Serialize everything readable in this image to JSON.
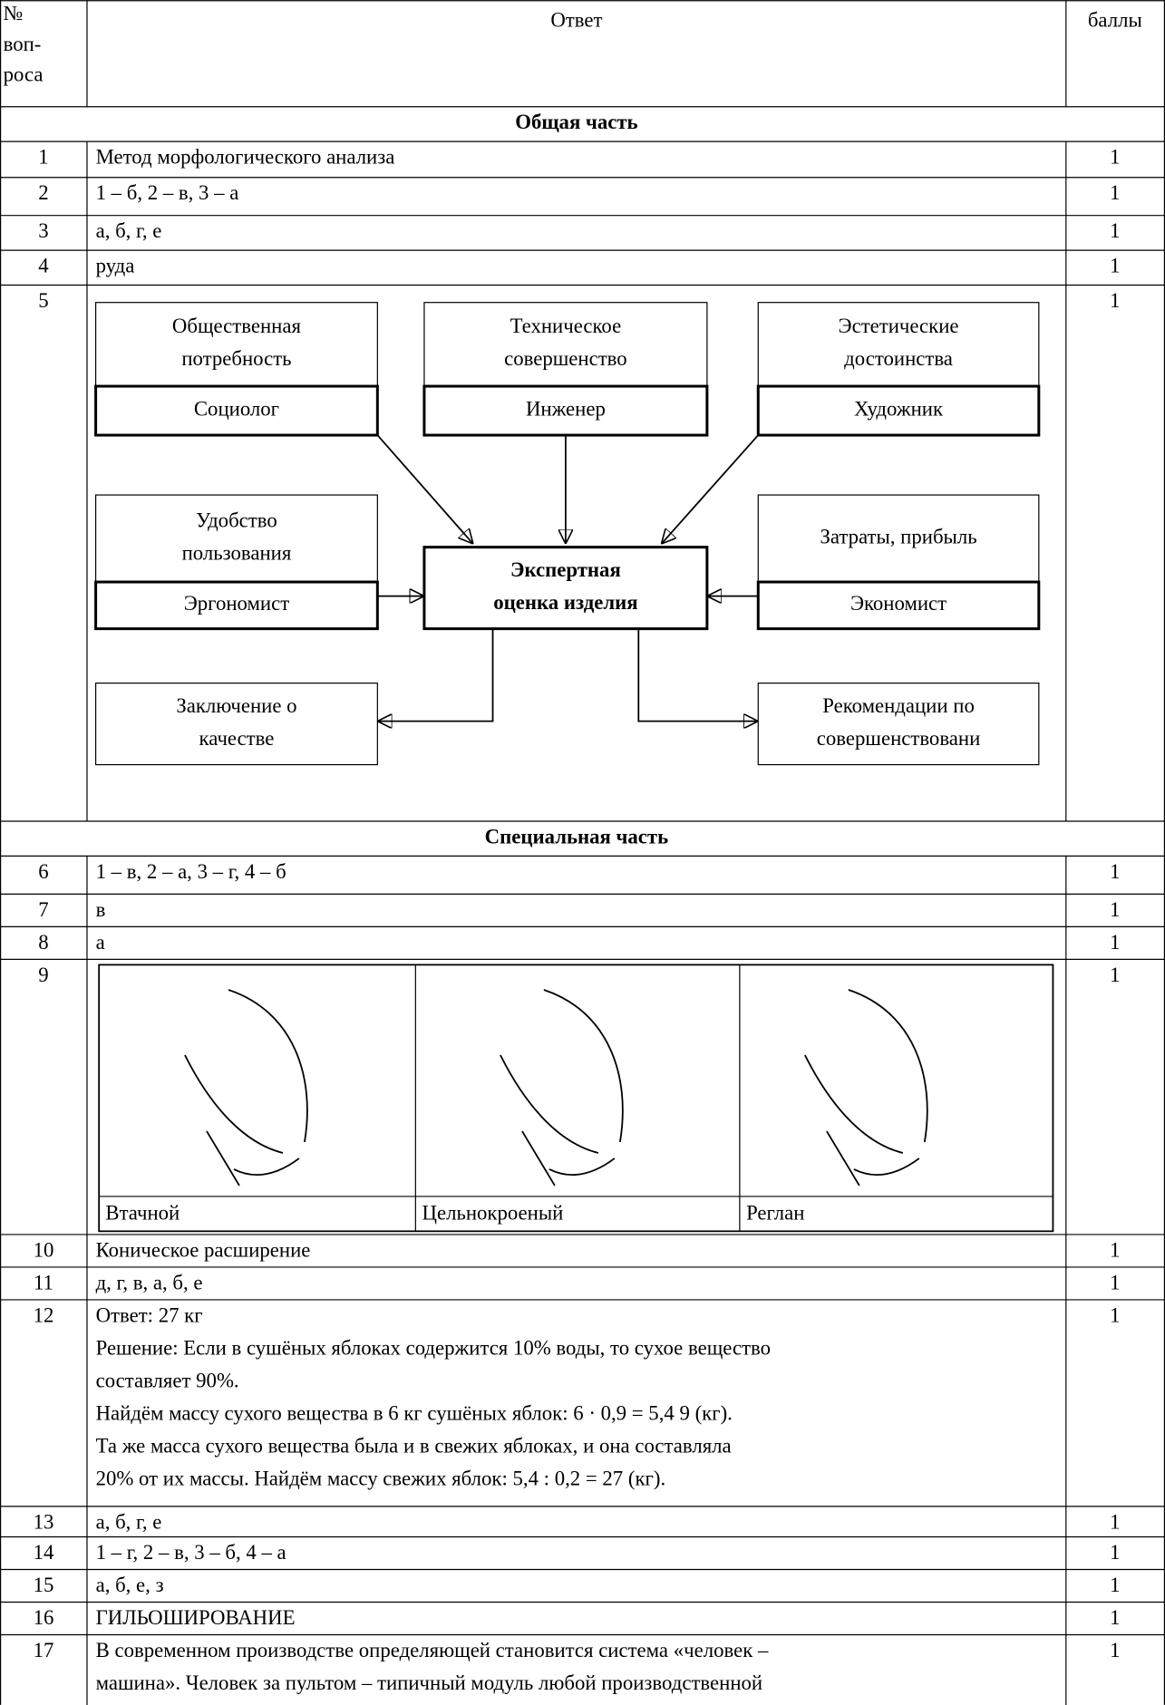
{
  "table": {
    "header": {
      "number": [
        "№",
        "воп-",
        "роса"
      ],
      "answer": "Ответ",
      "points": "баллы"
    },
    "sections": [
      {
        "title": "Общая часть",
        "rows": [
          {
            "number": 1,
            "answer": "Метод морфологического анализа",
            "points": 1
          },
          {
            "number": 2,
            "answer": "1 – б, 2 – в, 3 – а",
            "points": 1
          },
          {
            "number": 3,
            "answer": "а, б, г, е",
            "points": 1
          },
          {
            "number": 4,
            "answer": "руда",
            "points": 1
          },
          {
            "number": 5,
            "points": 1,
            "diagram": {
              "nodes": [
                {
                  "top": [
                    "Общественная",
                    "потребность"
                  ],
                  "bottom": "Социолог"
                },
                {
                  "top": [
                    "Техническое",
                    "совершенство"
                  ],
                  "bottom": "Инженер"
                },
                {
                  "top": [
                    "Эстетические",
                    "достоинства"
                  ],
                  "bottom": "Художник"
                },
                {
                  "top": [
                    "Удобство",
                    "пользования"
                  ],
                  "bottom": "Эргономист"
                },
                {
                  "top": [
                    "Экспертная",
                    "оценка изделия"
                  ]
                },
                {
                  "top": [
                    "Затраты, прибыль"
                  ],
                  "bottom": "Экономист"
                },
                {
                  "top": [
                    "Заключение о",
                    "качестве"
                  ]
                },
                {
                  "top": [
                    "Рекомендации по",
                    "совершенствовани"
                  ]
                }
              ]
            }
          }
        ]
      },
      {
        "title": "Специальная часть",
        "rows": [
          {
            "number": 6,
            "answer": "1 – в, 2 – а, 3 – г, 4 – б",
            "points": 1
          },
          {
            "number": 7,
            "answer": "в",
            "points": 1
          },
          {
            "number": 8,
            "answer": "а",
            "points": 1
          },
          {
            "number": 9,
            "points": 1,
            "sleeves": [
              "Втачной",
              "Цельнокроеный",
              "Реглан"
            ]
          },
          {
            "number": 10,
            "answer": "Коническое расширение",
            "points": 1
          },
          {
            "number": 11,
            "answer": "д, г, в, а, б, е",
            "points": 1
          },
          {
            "number": 12,
            "points": 1,
            "lines": [
              "Ответ: 27 кг",
              "Решение: Если в сушёных яблоках содержится 10% воды, то сухое вещество",
              "составляет 90%.",
              "Найдём массу сухого вещества в 6 кг сушёных яблок: 6 · 0,9 = 5,4 9 (кг).",
              "Та же масса сухого вещества была и в свежих яблоках, и она составляла",
              "20% от их массы. Найдём массу свежих яблок: 5,4 : 0,2 = 27 (кг)."
            ]
          },
          {
            "number": 13,
            "answer": "а, б, г, е",
            "points": 1
          },
          {
            "number": 14,
            "answer": "1 – г, 2 – в, 3 – б, 4 – а",
            "points": 1
          },
          {
            "number": 15,
            "answer": "а, б, е, з",
            "points": 1
          },
          {
            "number": 16,
            "answer": "ГИЛЬОШИРОВАНИЕ",
            "points": 1
          },
          {
            "number": 17,
            "points": 1,
            "lines": [
              "В современном производстве определяющей становится система «человек –",
              "машина». Человек за пультом – типичный модуль любой производственной"
            ]
          }
        ]
      }
    ]
  }
}
